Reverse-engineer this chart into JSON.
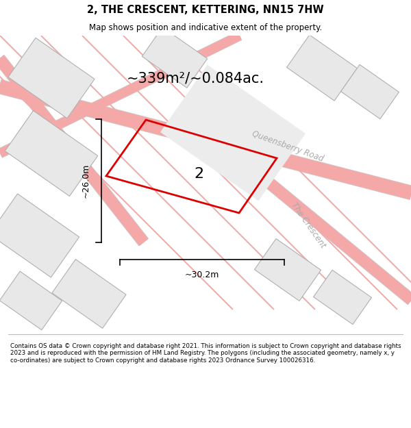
{
  "title": "2, THE CRESCENT, KETTERING, NN15 7HW",
  "subtitle": "Map shows position and indicative extent of the property.",
  "area_text": "~339m²/~0.084ac.",
  "label_number": "2",
  "dim_width": "~30.2m",
  "dim_height": "~26.0m",
  "road_label_1": "Queensberry Road",
  "road_label_2": "The Crescent",
  "footer_text": "Contains OS data © Crown copyright and database right 2021. This information is subject to Crown copyright and database rights 2023 and is reproduced with the permission of HM Land Registry. The polygons (including the associated geometry, namely x, y co-ordinates) are subject to Crown copyright and database rights 2023 Ordnance Survey 100026316.",
  "map_bg": "#f2f2f2",
  "plot_color": "#dd0000",
  "plot_fill": "#ececec",
  "road_color": "#f5a8a8",
  "road_lw": 1.2,
  "building_color": "#e8e8e8",
  "building_edge": "#b0b0b0",
  "building_lw": 0.8,
  "road_border_color": "#cccccc",
  "white": "#ffffff",
  "dim_color": "#000000",
  "text_color": "#000000",
  "road_text_color": "#aaaaaa"
}
